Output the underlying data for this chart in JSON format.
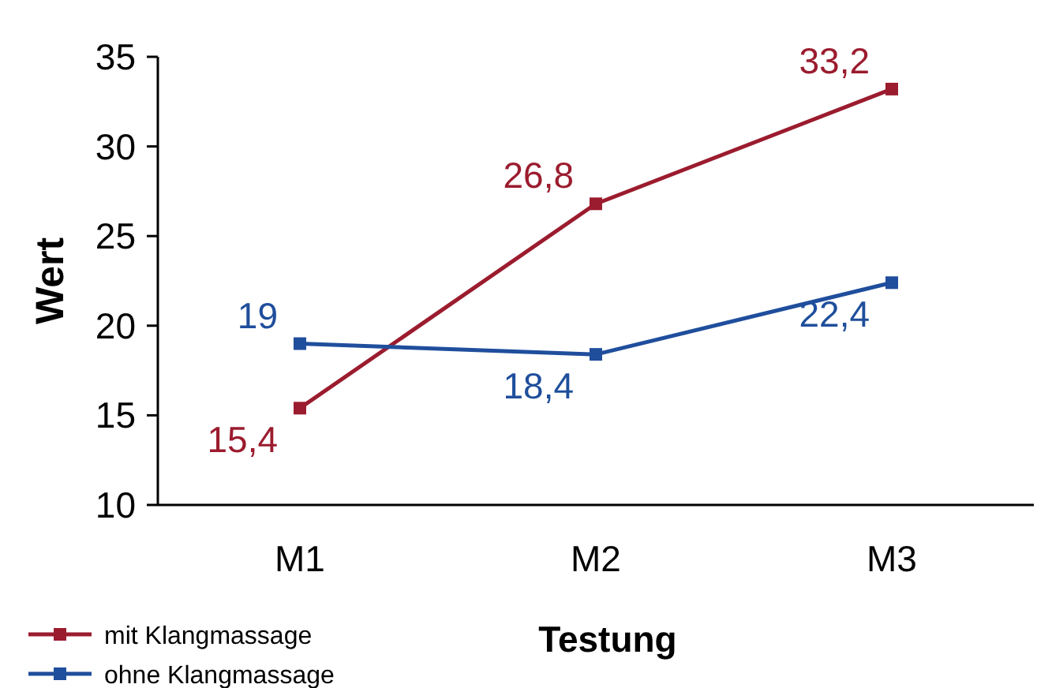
{
  "chart_data": {
    "type": "line",
    "xlabel": "Testung",
    "ylabel": "Wert",
    "categories": [
      "M1",
      "M2",
      "M3"
    ],
    "series": [
      {
        "name": "mit Klangmassage",
        "color": "#9b1c2e",
        "values": [
          15.4,
          26.8,
          33.2
        ],
        "value_labels": [
          "15,4",
          "26,8",
          "33,2"
        ]
      },
      {
        "name": "ohne Klangmassage",
        "color": "#1f4e9c",
        "values": [
          19,
          18.4,
          22.4
        ],
        "value_labels": [
          "19",
          "18,4",
          "22,4"
        ]
      }
    ],
    "ylim": [
      10,
      35
    ],
    "yticks": [
      10,
      15,
      20,
      25,
      30,
      35
    ],
    "marker": "square",
    "line_style": "solid",
    "legend": "bottom left",
    "grid": false
  }
}
